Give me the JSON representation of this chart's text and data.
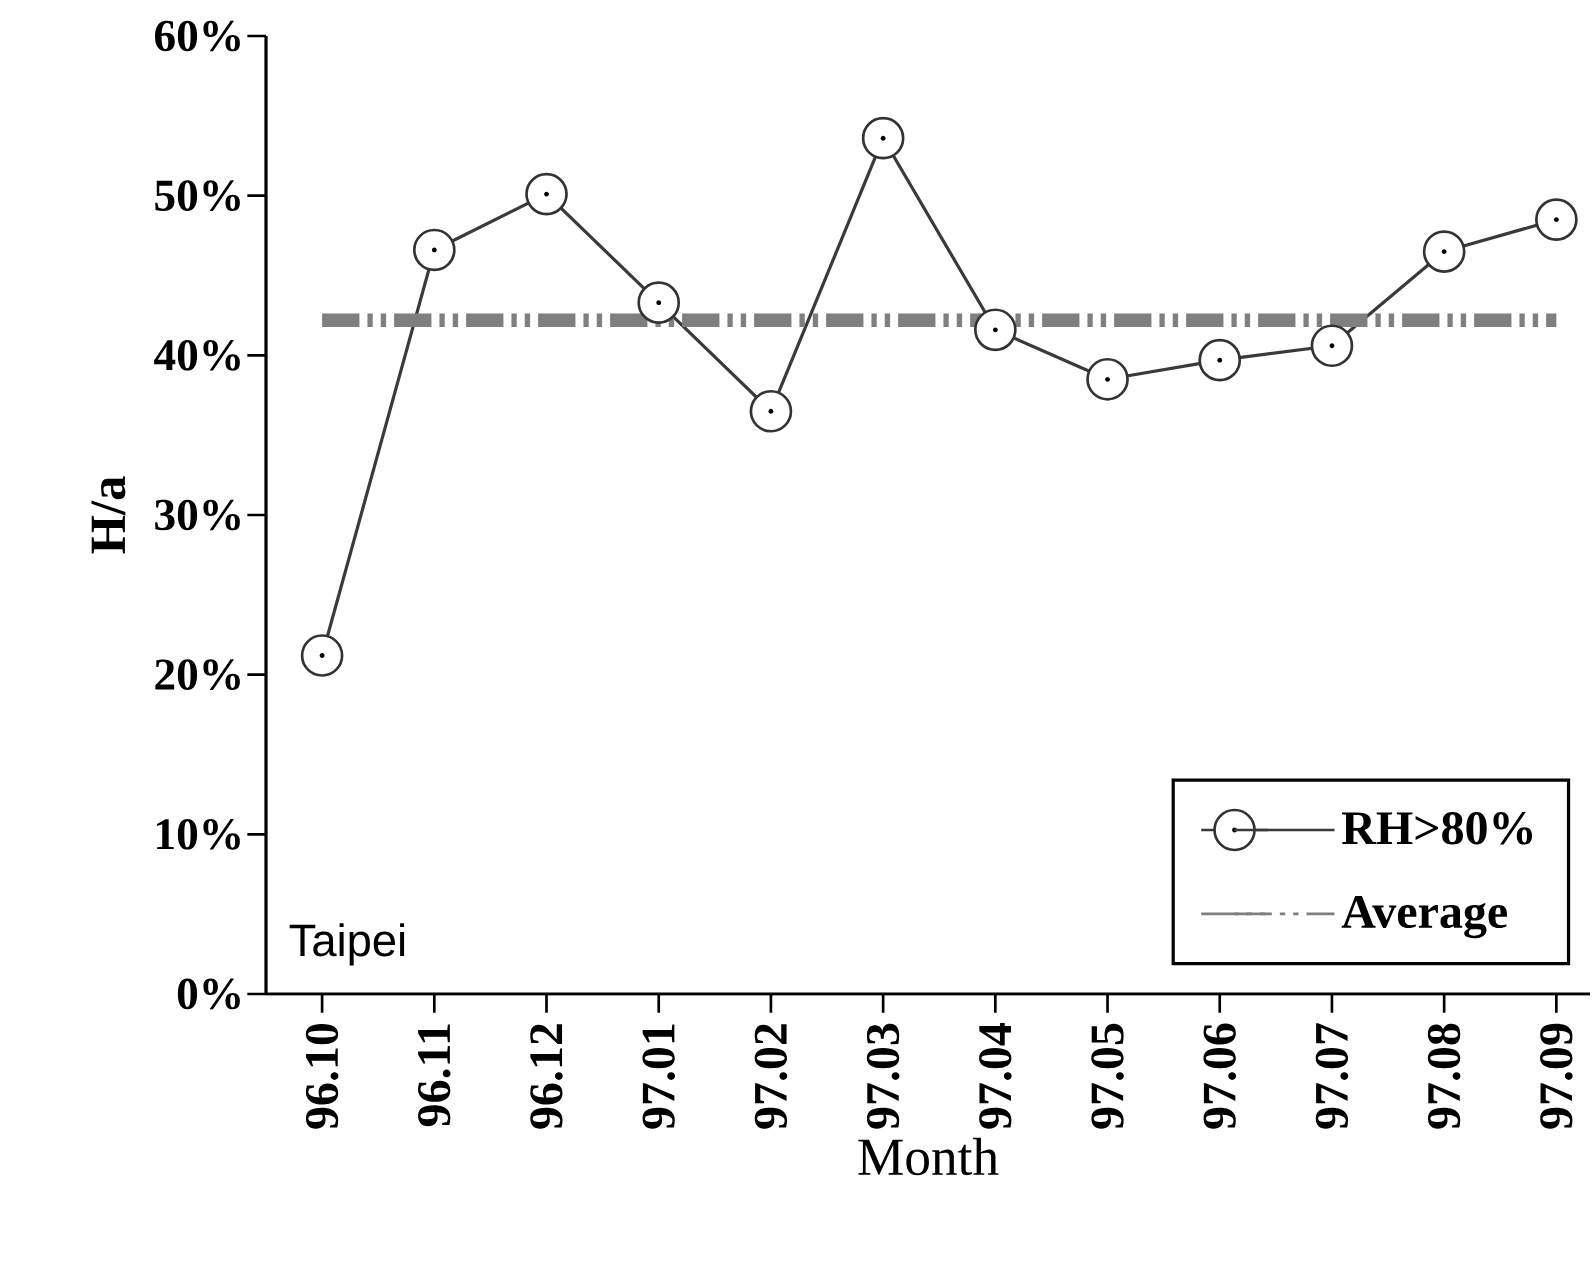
{
  "chart_data": {
    "type": "line",
    "xlabel": "Month",
    "ylabel": "H/a",
    "categories": [
      "96.10",
      "96.11",
      "96.12",
      "97.01",
      "97.02",
      "97.03",
      "97.04",
      "97.05",
      "97.06",
      "97.07",
      "97.08",
      "97.09"
    ],
    "series": [
      {
        "name": "RH>80%",
        "color": "#3a3a3a",
        "values": [
          21.2,
          46.6,
          50.1,
          43.3,
          36.5,
          53.6,
          41.6,
          38.5,
          39.7,
          40.6,
          46.5,
          48.5
        ]
      }
    ],
    "ref_lines": [
      {
        "axis": "y",
        "value": 42.2,
        "label": "Average",
        "color": "#7f7f7f",
        "line_style": "dashdot"
      }
    ],
    "ylim": [
      0,
      60
    ],
    "yticks": [
      {
        "value": 0,
        "label": "0%"
      },
      {
        "value": 10,
        "label": "10%"
      },
      {
        "value": 20,
        "label": "20%"
      },
      {
        "value": 30,
        "label": "30%"
      },
      {
        "value": 40,
        "label": "40%"
      },
      {
        "value": 50,
        "label": "50%"
      },
      {
        "value": 60,
        "label": "60%"
      }
    ],
    "annotations": [
      "Taipei"
    ],
    "legend": "bottom right",
    "marker": "circle",
    "line_style": "solid",
    "grid": false
  }
}
